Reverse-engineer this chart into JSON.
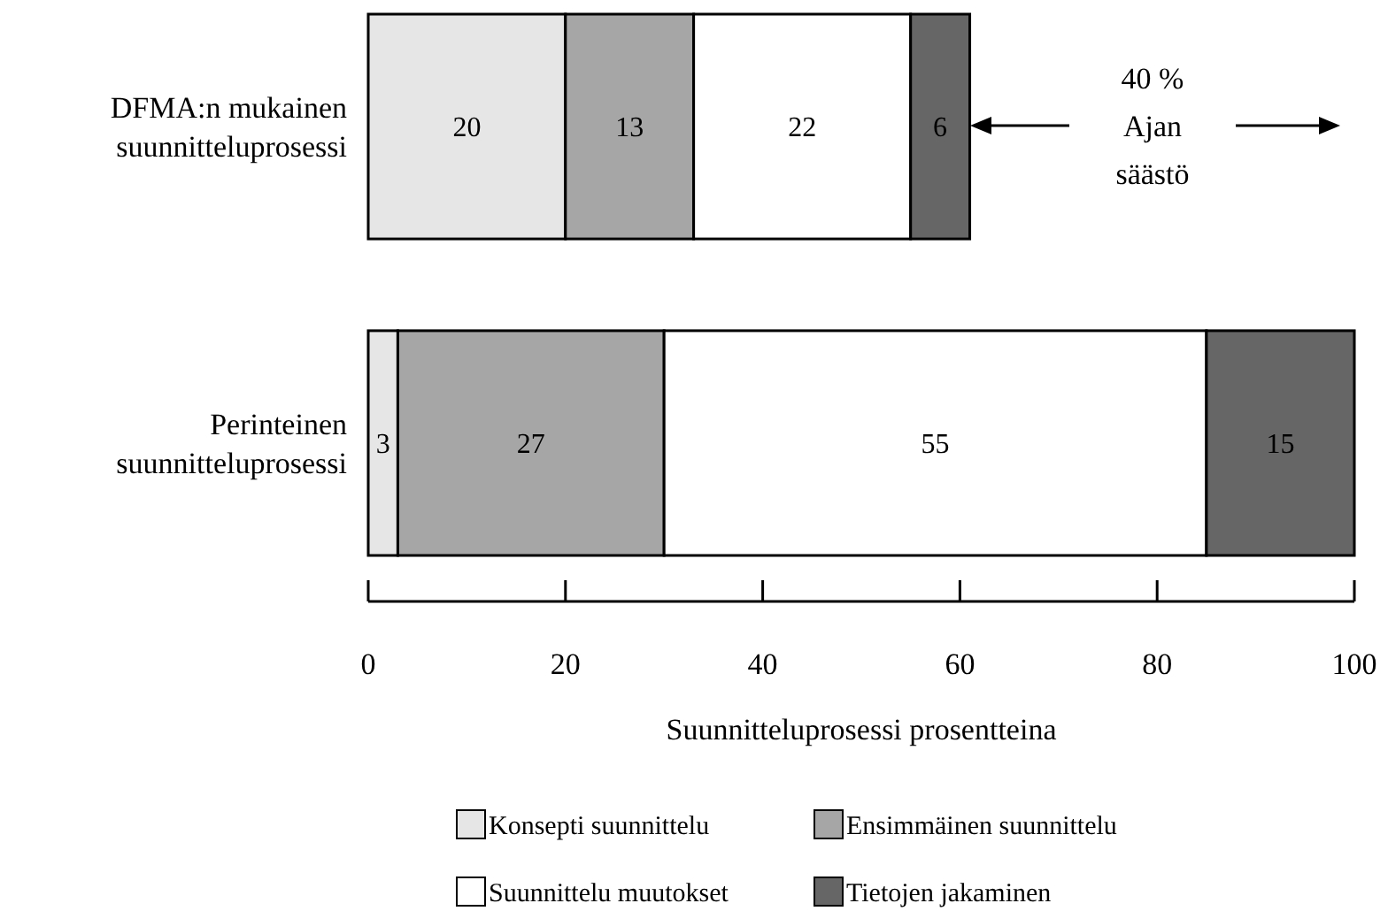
{
  "chart_data": {
    "type": "bar",
    "orientation": "horizontal",
    "stacked": true,
    "categories": [
      "DFMA:n mukainen suunnitteluprosessi",
      "Perinteinen suunnitteluprosessi"
    ],
    "series": [
      {
        "name": "Konsepti suunnittelu",
        "color": "#e6e6e6",
        "values": [
          20,
          3
        ]
      },
      {
        "name": "Ensimmäinen suunnittelu",
        "color": "#a6a6a6",
        "values": [
          13,
          27
        ]
      },
      {
        "name": "Suunnittelu muutokset",
        "color": "#ffffff",
        "values": [
          22,
          55
        ]
      },
      {
        "name": "Tietojen jakaminen",
        "color": "#666666",
        "values": [
          6,
          15
        ]
      }
    ],
    "xlim": [
      0,
      100
    ],
    "xticks": [
      0,
      20,
      40,
      60,
      80,
      100
    ],
    "xlabel": "Suunnitteluprosessi prosentteina",
    "data_labels": true,
    "legend": "bottom",
    "annotations": [
      "40 %\nAjan\nsäästö"
    ]
  }
}
